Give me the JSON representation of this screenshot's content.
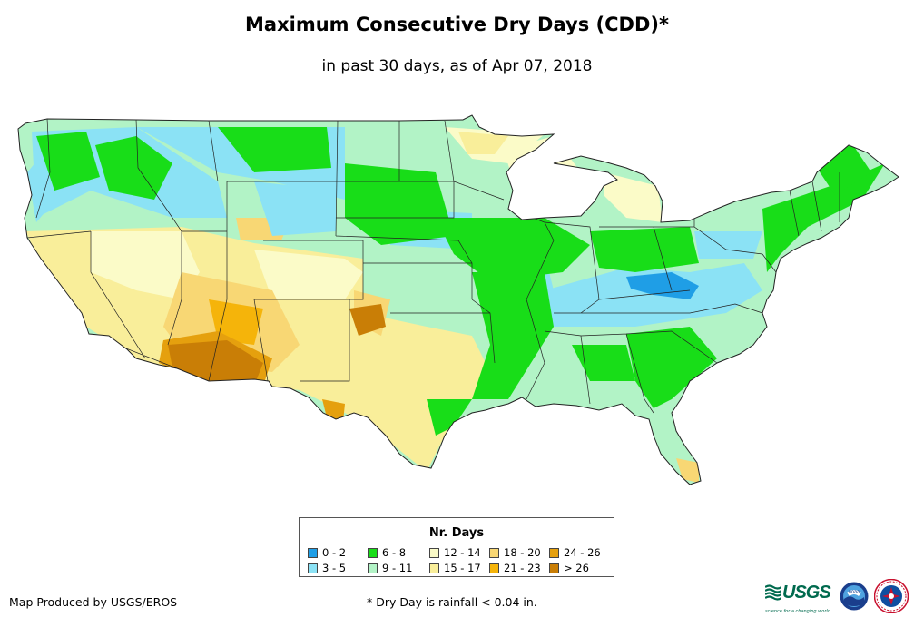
{
  "title": "Maximum Consecutive Dry Days (CDD)*",
  "subtitle": "in past 30 days, as of Apr 07, 2018",
  "legend": {
    "title": "Nr. Days",
    "items": [
      {
        "label": "0 - 2",
        "color": "#1f9ee6"
      },
      {
        "label": "3 - 5",
        "color": "#8be2f5"
      },
      {
        "label": "6 - 8",
        "color": "#18dd18"
      },
      {
        "label": "9 - 11",
        "color": "#b2f3c6"
      },
      {
        "label": "12 - 14",
        "color": "#fbfbc8"
      },
      {
        "label": "15 - 17",
        "color": "#f9ee9a"
      },
      {
        "label": "18 - 20",
        "color": "#f8d774"
      },
      {
        "label": "21 - 23",
        "color": "#f5b40a"
      },
      {
        "label": "24 - 26",
        "color": "#e5a00e"
      },
      {
        "label": "> 26",
        "color": "#c97e06"
      }
    ]
  },
  "credit": "Map Produced by USGS/EROS",
  "footnote": "* Dry Day is rainfall < 0.04 in.",
  "logos": {
    "usgs": "USGS",
    "usgs_tagline": "science for a changing world",
    "noaa": "noaa",
    "nws_icon": "national-weather-service-seal"
  }
}
